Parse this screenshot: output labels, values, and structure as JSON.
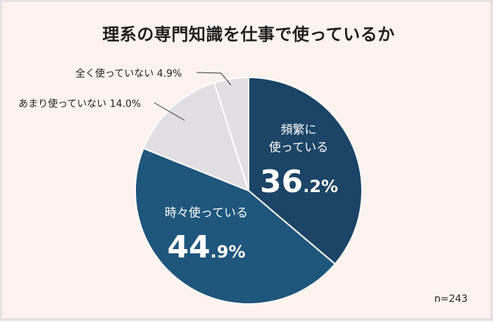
{
  "chart_data": {
    "type": "pie",
    "title": "理系の専門知識を仕事で使っているか",
    "categories": [
      "頻繁に使っている",
      "時々使っている",
      "あまり使っていない",
      "全く使っていない"
    ],
    "values": [
      36.2,
      44.9,
      14.0,
      4.9
    ],
    "unit": "%",
    "start_angle": "12 o'clock",
    "direction": "clockwise",
    "colors": [
      "#1b4466",
      "#1f567c",
      "#e2dfe3",
      "#e2dfe3"
    ],
    "sample_size": "n=243",
    "legend": "none (direct labels)"
  },
  "title": "理系の専門知識を仕事で使っているか",
  "slices": [
    {
      "label_line1": "頻繁に",
      "label_line2": "使っている",
      "pct_int": "36",
      "pct_dec": ".2%",
      "color": "#1b4466"
    },
    {
      "label_line1": "時々使っている",
      "pct_int": "44",
      "pct_dec": ".9%",
      "color": "#1f567c"
    },
    {
      "outside_label": "あまり使っていない 14.0%",
      "color": "#e2dfe3"
    },
    {
      "outside_label": "全く使っていない 4.9%",
      "color": "#e2dfe3"
    }
  ],
  "sample": "n=243",
  "colors": {
    "background": "#fdf3ee",
    "border": "#e6e2e2",
    "separator": "#ffffff",
    "leader": "#333333"
  }
}
